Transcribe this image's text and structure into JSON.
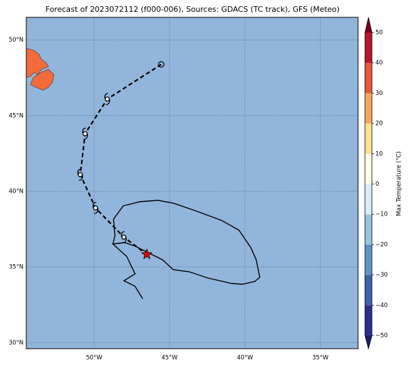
{
  "map": {
    "title": "Forecast of 2023072112 (f000-006), Sources: GDACS (TC track), GFS (Meteo)",
    "lonlim": [
      -54.5,
      -32.5
    ],
    "latlim": [
      29.6,
      51.5
    ],
    "lat_ticks": [
      {
        "value": 50,
        "label": "50°N"
      },
      {
        "value": 45,
        "label": "45°N"
      },
      {
        "value": 40,
        "label": "40°N"
      },
      {
        "value": 35,
        "label": "35°N"
      },
      {
        "value": 30,
        "label": "30°N"
      }
    ],
    "lon_ticks": [
      {
        "value": -50,
        "label": "50°W"
      },
      {
        "value": -45,
        "label": "45°W"
      },
      {
        "value": -40,
        "label": "40°W"
      },
      {
        "value": -35,
        "label": "35°W"
      }
    ],
    "grid": true,
    "track": {
      "lon": [
        -45.55,
        -49.13,
        -50.6,
        -50.92,
        -49.91,
        -48.03,
        -46.51
      ],
      "lat": [
        48.39,
        46.1,
        43.81,
        41.1,
        38.9,
        36.97,
        35.83
      ]
    },
    "colorbar": {
      "label": "Max Temperature (°C)",
      "range": [
        -50,
        50
      ],
      "colors": [
        "#2b2f8f",
        "#3a64aa",
        "#5c95c5",
        "#94c5de",
        "#d6eef4",
        "#fdfde3",
        "#fee191",
        "#f9a65d",
        "#e7593a",
        "#b8162b"
      ],
      "under_color": "#1c1c6e",
      "over_color": "#7b0021",
      "ticks": [
        {
          "value": -50,
          "label": "−50"
        },
        {
          "value": -40,
          "label": "−40"
        },
        {
          "value": -30,
          "label": "−30"
        },
        {
          "value": -20,
          "label": "−20"
        },
        {
          "value": -10,
          "label": "−10"
        },
        0,
        10,
        20,
        30,
        40,
        50
      ]
    }
  }
}
